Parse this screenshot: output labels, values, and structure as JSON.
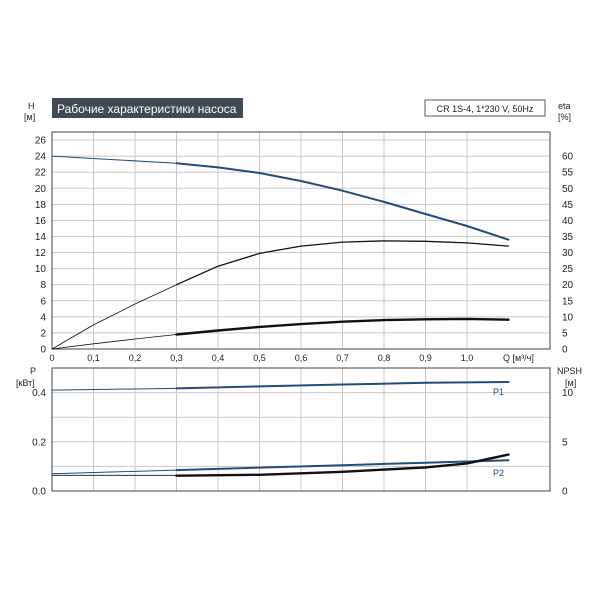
{
  "title": "Рабочие характеристики насоса",
  "model": "CR 1S-4, 1*230 V, 50Hz",
  "colors": {
    "grid": "#c8c8c8",
    "frame": "#444444",
    "title_bg": "#3f4a55",
    "blue": "#1f4e79",
    "black": "#111111"
  },
  "chart_data": [
    {
      "type": "line",
      "left_axis": {
        "label_line1": "H",
        "label_line2": "[м]",
        "ticks": [
          0,
          2,
          4,
          6,
          8,
          10,
          12,
          14,
          16,
          18,
          20,
          22,
          24,
          26
        ],
        "range": [
          0,
          27
        ]
      },
      "right_axis": {
        "label_line1": "eta",
        "label_line2": "[%]",
        "ticks": [
          0,
          5,
          10,
          15,
          20,
          25,
          30,
          35,
          40,
          45,
          50,
          55,
          60
        ],
        "range": [
          0,
          67.5
        ]
      },
      "x_axis": {
        "label": "Q [м³/ч]",
        "ticks": [
          "0",
          "0,1",
          "0,2",
          "0,3",
          "0,4",
          "0,5",
          "0,6",
          "0,7",
          "0,8",
          "0,9",
          "1,0"
        ],
        "tick_values": [
          0,
          0.1,
          0.2,
          0.3,
          0.4,
          0.5,
          0.6,
          0.7,
          0.8,
          0.9,
          1.0
        ],
        "range": [
          0,
          1.2
        ]
      },
      "series": [
        {
          "axis": "left",
          "style": "blue-thin",
          "x": [
            0,
            0.3
          ],
          "y": [
            24,
            23.1
          ]
        },
        {
          "axis": "left",
          "style": "blue-thick",
          "x": [
            0.3,
            0.4,
            0.5,
            0.6,
            0.7,
            0.8,
            0.9,
            1.0,
            1.1
          ],
          "y": [
            23.1,
            22.6,
            21.9,
            20.9,
            19.7,
            18.3,
            16.8,
            15.3,
            13.6
          ]
        },
        {
          "axis": "left",
          "style": "black-thin",
          "x": [
            0,
            0.1,
            0.2,
            0.3
          ],
          "y": [
            0,
            3.0,
            5.6,
            8.0
          ]
        },
        {
          "axis": "left",
          "style": "black-mid",
          "x": [
            0.3,
            0.4,
            0.5,
            0.6,
            0.7,
            0.8,
            0.9,
            1.0,
            1.1
          ],
          "y": [
            8.0,
            10.3,
            11.9,
            12.8,
            13.3,
            13.45,
            13.4,
            13.2,
            12.8
          ]
        },
        {
          "axis": "left",
          "style": "black-thin",
          "x": [
            0,
            0.1,
            0.2,
            0.3
          ],
          "y": [
            0,
            0.65,
            1.25,
            1.8
          ]
        },
        {
          "axis": "left",
          "style": "black-thick",
          "x": [
            0.3,
            0.4,
            0.5,
            0.6,
            0.7,
            0.8,
            0.9,
            1.0,
            1.1
          ],
          "y": [
            1.8,
            2.3,
            2.75,
            3.1,
            3.4,
            3.6,
            3.7,
            3.75,
            3.65
          ]
        }
      ]
    },
    {
      "type": "line",
      "left_axis": {
        "label_line1": "P",
        "label_line2": "[кВт]",
        "ticks": [
          "0.0",
          "0.2",
          "0.4"
        ],
        "tick_values": [
          0,
          0.2,
          0.4
        ],
        "range": [
          0,
          0.5
        ]
      },
      "right_axis": {
        "label_line1": "NPSH",
        "label_line2": "[м]",
        "ticks": [
          "0",
          "5",
          "10"
        ],
        "tick_values": [
          0,
          5,
          10
        ],
        "range": [
          0,
          12.5
        ]
      },
      "x_axis": {
        "range": [
          0,
          1.2
        ],
        "tick_values": [
          0,
          0.1,
          0.2,
          0.3,
          0.4,
          0.5,
          0.6,
          0.7,
          0.8,
          0.9,
          1.0
        ]
      },
      "series_labels": [
        "P1",
        "P2"
      ],
      "series": [
        {
          "axis": "left",
          "style": "blue-thin",
          "x": [
            0,
            0.3
          ],
          "y": [
            0.41,
            0.417
          ]
        },
        {
          "axis": "left",
          "style": "blue-thick",
          "name": "P1",
          "x": [
            0.3,
            0.5,
            0.7,
            0.9,
            1.1
          ],
          "y": [
            0.417,
            0.425,
            0.433,
            0.44,
            0.443
          ]
        },
        {
          "axis": "left",
          "style": "blue-thin",
          "x": [
            0,
            0.3
          ],
          "y": [
            0.07,
            0.085
          ]
        },
        {
          "axis": "left",
          "style": "blue-thick",
          "name": "P2",
          "x": [
            0.3,
            0.5,
            0.7,
            0.9,
            1.1
          ],
          "y": [
            0.085,
            0.095,
            0.105,
            0.115,
            0.125
          ]
        },
        {
          "axis": "right",
          "style": "black-thin",
          "x": [
            0,
            0.3
          ],
          "y": [
            1.6,
            1.6
          ]
        },
        {
          "axis": "right",
          "style": "black-thick",
          "x": [
            0.3,
            0.5,
            0.7,
            0.9,
            1.0,
            1.1
          ],
          "y": [
            1.55,
            1.65,
            1.95,
            2.4,
            2.8,
            3.7
          ]
        }
      ]
    }
  ]
}
